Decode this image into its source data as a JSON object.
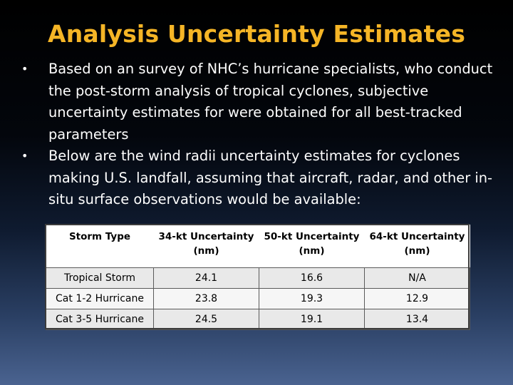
{
  "slide": {
    "title": "Analysis Uncertainty Estimates",
    "bullets": [
      "Based on an survey of NHC’s hurricane specialists, who conduct the post-storm analysis of tropical cyclones, subjective uncertainty estimates for were obtained for all best-tracked parameters",
      "Below are the wind radii uncertainty estimates for cyclones making U.S. landfall, assuming that aircraft, radar, and other in-situ surface observations would be available:"
    ],
    "bullet_glyph": "•"
  },
  "table": {
    "headers": [
      "Storm Type",
      "34-kt Uncertainty (nm)",
      "50-kt Uncertainty (nm)",
      "64-kt Uncertainty (nm)"
    ],
    "rows": [
      [
        "Tropical Storm",
        "24.1",
        "16.6",
        "N/A"
      ],
      [
        "Cat 1-2  Hurricane",
        "23.8",
        "19.3",
        "12.9"
      ],
      [
        "Cat 3-5  Hurricane",
        "24.5",
        "19.1",
        "13.4"
      ]
    ]
  },
  "colors": {
    "title": "#f5b526",
    "text": "#ffffff",
    "background_top": "#000000",
    "background_bottom": "#4a6390"
  }
}
